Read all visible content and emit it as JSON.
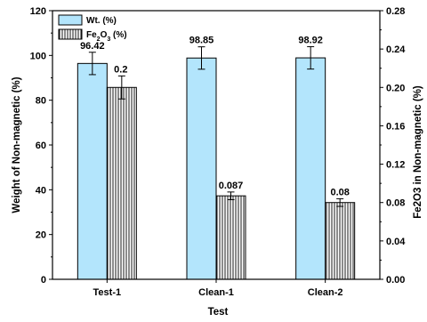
{
  "chart_data": {
    "type": "bar",
    "xlabel": "Test",
    "ylabel_left": "Weight of Non-magnetic (%)",
    "ylabel_right": "Fe2O3 in Non-magnetic (%)",
    "categories": [
      "Test-1",
      "Clean-1",
      "Clean-2"
    ],
    "ylim_left": [
      0,
      120
    ],
    "ylim_right": [
      0,
      0.28
    ],
    "yticks_left": [
      "0",
      "20",
      "40",
      "60",
      "80",
      "100",
      "120"
    ],
    "yticks_right": [
      "0.00",
      "0.04",
      "0.08",
      "0.12",
      "0.16",
      "0.20",
      "0.24",
      "0.28"
    ],
    "grid": false,
    "legend_placement": "top-left",
    "series": [
      {
        "name_main": "Wt. (%)",
        "axis": "left",
        "values": [
          96.42,
          98.85,
          98.92
        ],
        "errors": [
          5,
          5,
          5
        ],
        "labels": [
          "96.42",
          "98.85",
          "98.92"
        ],
        "fill": "#b3e5fc",
        "pattern": "solid"
      },
      {
        "name_main": "Fe",
        "name_sub": "2",
        "name_mid": "O",
        "name_sub2": "3",
        "name_tail": " (%)",
        "axis": "right",
        "values": [
          0.2,
          0.087,
          0.08
        ],
        "errors": [
          0.012,
          0.004,
          0.004
        ],
        "labels": [
          "0.2",
          "0.087",
          "0.08"
        ],
        "fill": "#ffffff",
        "pattern": "vertical-lines"
      }
    ]
  }
}
